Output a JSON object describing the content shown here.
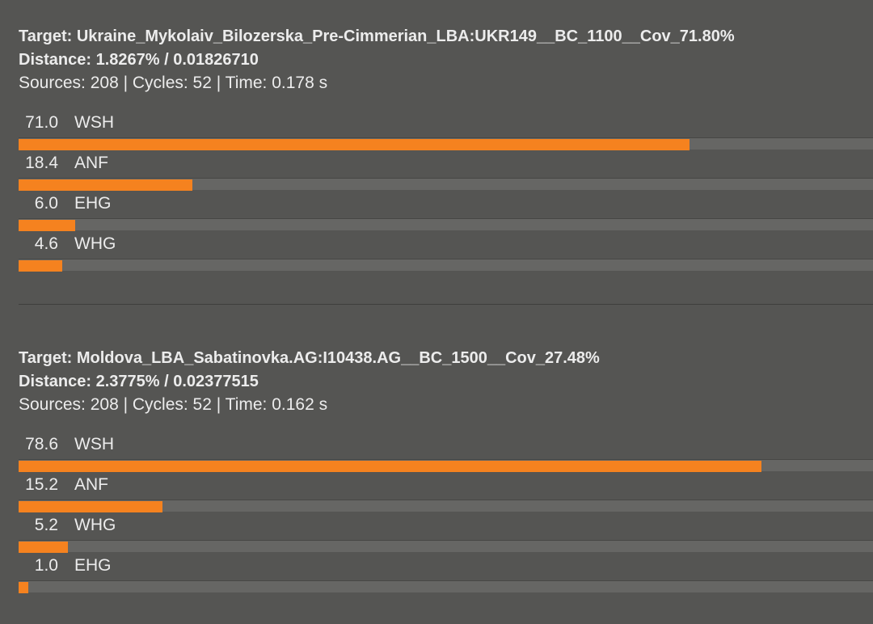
{
  "results": [
    {
      "target": "Target: Ukraine_Mykolaiv_Bilozerska_Pre-Cimmerian_LBA:UKR149__BC_1100__Cov_71.80%",
      "distance": "Distance: 1.8267% / 0.01826710",
      "stats": "Sources: 208 | Cycles: 52 | Time: 0.178 s",
      "components": [
        {
          "value": {
            "value": 71,
            "label": "71.0"
          },
          "name": "WSH"
        },
        {
          "value": 18.4,
          "name": "ANF"
        },
        {
          "value": {
            "value": 6,
            "label": "6.0"
          },
          "name": "EHG"
        },
        {
          "value": 4.6,
          "name": "WHG"
        }
      ]
    },
    {
      "target": "Target: Moldova_LBA_Sabatinovka.AG:I10438.AG__BC_1500__Cov_27.48%",
      "distance": "Distance: 2.3775% / 0.02377515",
      "stats": "Sources: 208 | Cycles: 52 | Time: 0.162 s",
      "components": [
        {
          "value": 78.6,
          "name": "WSH"
        },
        {
          "value": 15.2,
          "name": "ANF"
        },
        {
          "value": 5.2,
          "name": "WHG"
        },
        {
          "value": {
            "value": 1,
            "label": "1.0"
          },
          "name": "EHG"
        }
      ]
    }
  ]
}
